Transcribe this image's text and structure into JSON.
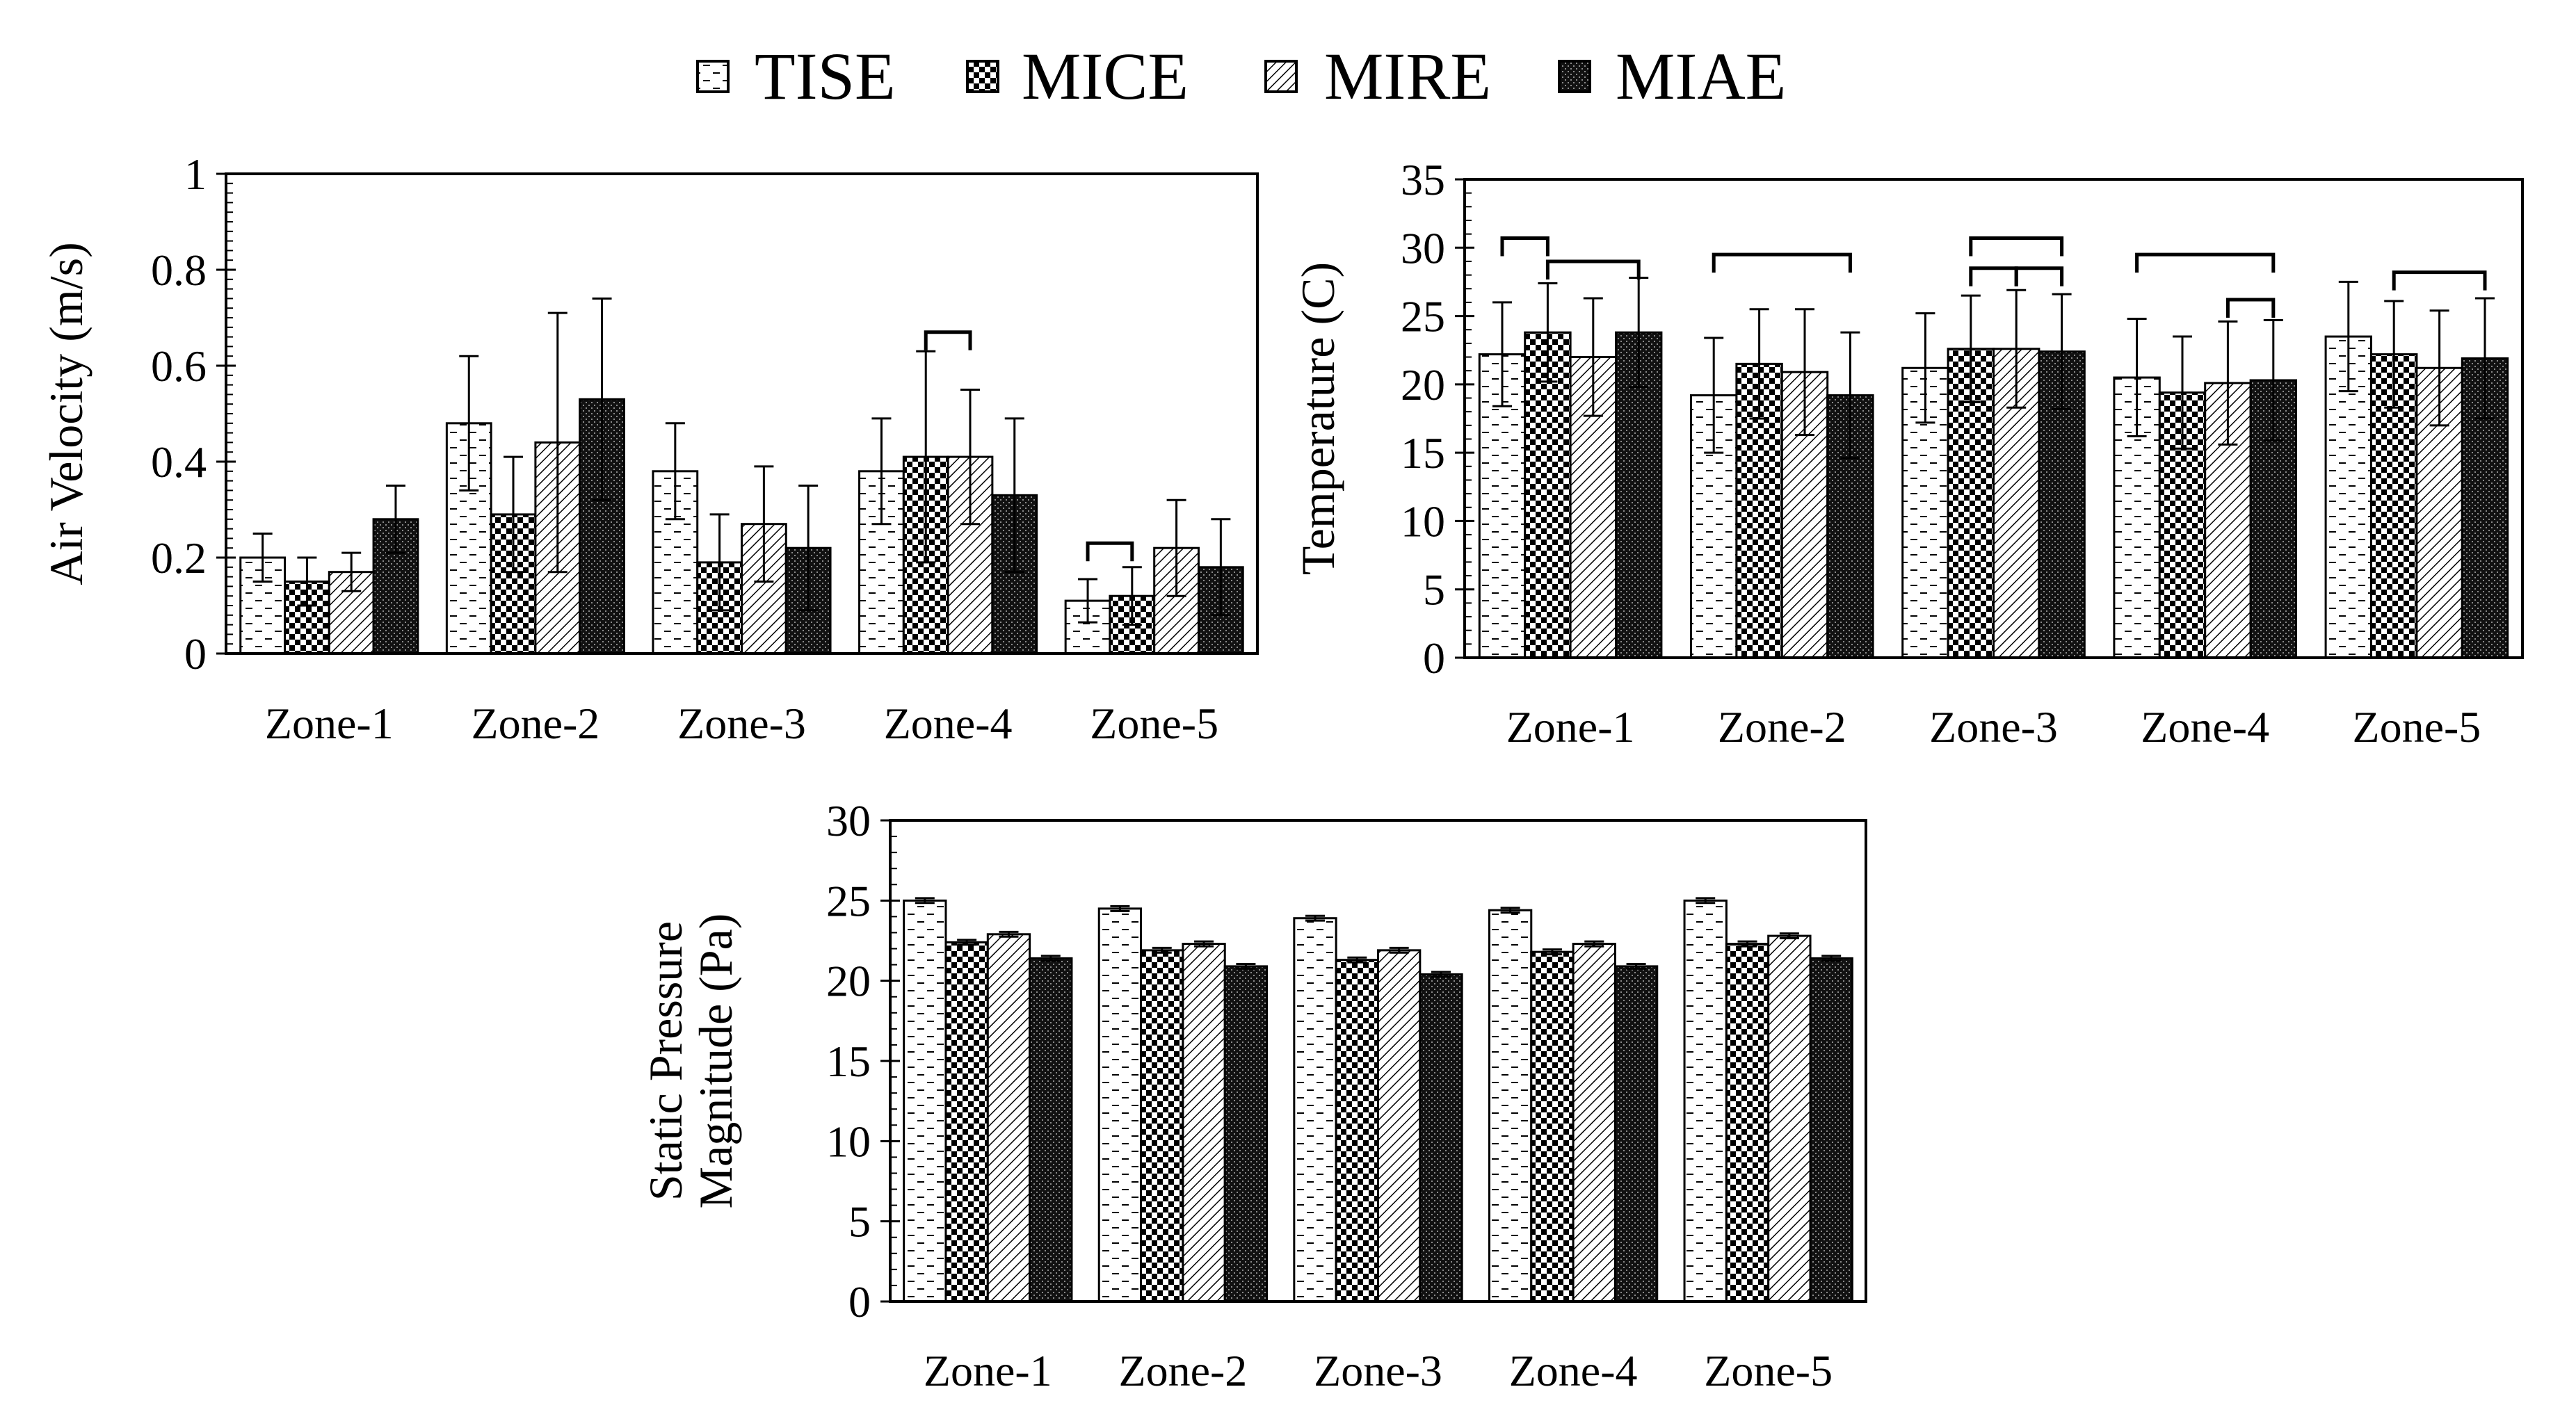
{
  "legend": [
    {
      "name": "TISE",
      "pattern": "pat-tise"
    },
    {
      "name": "MICE",
      "pattern": "pat-mice"
    },
    {
      "name": "MIRE",
      "pattern": "pat-mire"
    },
    {
      "name": "MIAE",
      "pattern": "pat-miae"
    }
  ],
  "chart_data": [
    {
      "id": "velocity",
      "type": "bar",
      "title": "",
      "xlabel": "",
      "ylabel_lines": [
        "Air Velocity (m/s)"
      ],
      "categories": [
        "Zone-1",
        "Zone-2",
        "Zone-3",
        "Zone-4",
        "Zone-5"
      ],
      "ylim": [
        0,
        1
      ],
      "yticks": [
        0,
        0.2,
        0.4,
        0.6,
        0.8,
        1
      ],
      "ytick_labels": [
        "0",
        "0.2",
        "0.4",
        "0.6",
        "0.8",
        "1"
      ],
      "minor_step": 0.02,
      "grid": false,
      "series": [
        {
          "name": "TISE",
          "values": [
            0.2,
            0.48,
            0.38,
            0.38,
            0.11
          ],
          "errors": [
            0.05,
            0.14,
            0.1,
            0.11,
            0.045
          ]
        },
        {
          "name": "MICE",
          "values": [
            0.15,
            0.29,
            0.19,
            0.41,
            0.12
          ],
          "errors": [
            0.05,
            0.12,
            0.1,
            0.22,
            0.06
          ]
        },
        {
          "name": "MIRE",
          "values": [
            0.17,
            0.44,
            0.27,
            0.41,
            0.22
          ],
          "errors": [
            0.04,
            0.27,
            0.12,
            0.14,
            0.1
          ]
        },
        {
          "name": "MIAE",
          "values": [
            0.28,
            0.53,
            0.22,
            0.33,
            0.18
          ],
          "errors": [
            0.07,
            0.21,
            0.13,
            0.16,
            0.1
          ]
        }
      ],
      "significance_brackets": [
        {
          "category": 3,
          "from": 1,
          "to": 2,
          "level": 0.67
        },
        {
          "category": 4,
          "from": 0,
          "to": 1,
          "level": 0.23
        }
      ]
    },
    {
      "id": "temperature",
      "type": "bar",
      "title": "",
      "xlabel": "",
      "ylabel_lines": [
        "Temperature (C)"
      ],
      "categories": [
        "Zone-1",
        "Zone-2",
        "Zone-3",
        "Zone-4",
        "Zone-5"
      ],
      "ylim": [
        0,
        35
      ],
      "yticks": [
        0,
        5,
        10,
        15,
        20,
        25,
        30,
        35
      ],
      "ytick_labels": [
        "0",
        "5",
        "10",
        "15",
        "20",
        "25",
        "30",
        "35"
      ],
      "minor_step": 1,
      "grid": false,
      "series": [
        {
          "name": "TISE",
          "values": [
            22.2,
            19.2,
            21.2,
            20.5,
            23.5
          ],
          "errors": [
            3.8,
            4.2,
            4.0,
            4.3,
            4.0
          ]
        },
        {
          "name": "MICE",
          "values": [
            23.8,
            21.5,
            22.6,
            19.4,
            22.2
          ],
          "errors": [
            3.6,
            4.0,
            3.9,
            4.1,
            3.9
          ]
        },
        {
          "name": "MIRE",
          "values": [
            22.0,
            20.9,
            22.6,
            20.1,
            21.2
          ],
          "errors": [
            4.3,
            4.6,
            4.3,
            4.5,
            4.2
          ]
        },
        {
          "name": "MIAE",
          "values": [
            23.8,
            19.2,
            22.4,
            20.3,
            21.9
          ],
          "errors": [
            4.0,
            4.6,
            4.2,
            4.4,
            4.4
          ]
        }
      ],
      "significance_brackets": [
        {
          "category": 0,
          "from": 0,
          "to": 1,
          "level": 30.7
        },
        {
          "category": 0,
          "from": 1,
          "to": 3,
          "level": 29.0
        },
        {
          "category": 1,
          "from": 0,
          "to": 3,
          "level": 29.5
        },
        {
          "category": 2,
          "from": 1,
          "to": 3,
          "level": 30.7
        },
        {
          "category": 2,
          "from": 1,
          "to": 2,
          "level": 28.5
        },
        {
          "category": 2,
          "from": 2,
          "to": 3,
          "level": 28.5
        },
        {
          "category": 3,
          "from": 0,
          "to": 3,
          "level": 29.5
        },
        {
          "category": 3,
          "from": 2,
          "to": 3,
          "level": 26.2
        },
        {
          "category": 4,
          "from": 1,
          "to": 3,
          "level": 28.2
        }
      ]
    },
    {
      "id": "pressure",
      "type": "bar",
      "title": "",
      "xlabel": "",
      "ylabel_lines": [
        "Static Pressure",
        "Magnitude (Pa)"
      ],
      "categories": [
        "Zone-1",
        "Zone-2",
        "Zone-3",
        "Zone-4",
        "Zone-5"
      ],
      "ylim": [
        0,
        30
      ],
      "yticks": [
        0,
        5,
        10,
        15,
        20,
        25,
        30
      ],
      "ytick_labels": [
        "0",
        "5",
        "10",
        "15",
        "20",
        "25",
        "30"
      ],
      "minor_step": 1,
      "grid": false,
      "series": [
        {
          "name": "TISE",
          "values": [
            25.0,
            24.5,
            23.9,
            24.4,
            25.0
          ],
          "errors": [
            0.15,
            0.15,
            0.15,
            0.15,
            0.15
          ]
        },
        {
          "name": "MICE",
          "values": [
            22.4,
            21.9,
            21.3,
            21.8,
            22.3
          ],
          "errors": [
            0.15,
            0.15,
            0.15,
            0.15,
            0.15
          ]
        },
        {
          "name": "MIRE",
          "values": [
            22.9,
            22.3,
            21.9,
            22.3,
            22.8
          ],
          "errors": [
            0.15,
            0.15,
            0.15,
            0.15,
            0.15
          ]
        },
        {
          "name": "MIAE",
          "values": [
            21.4,
            20.9,
            20.4,
            20.9,
            21.4
          ],
          "errors": [
            0.15,
            0.15,
            0.15,
            0.15,
            0.15
          ]
        }
      ],
      "significance_brackets": []
    }
  ]
}
